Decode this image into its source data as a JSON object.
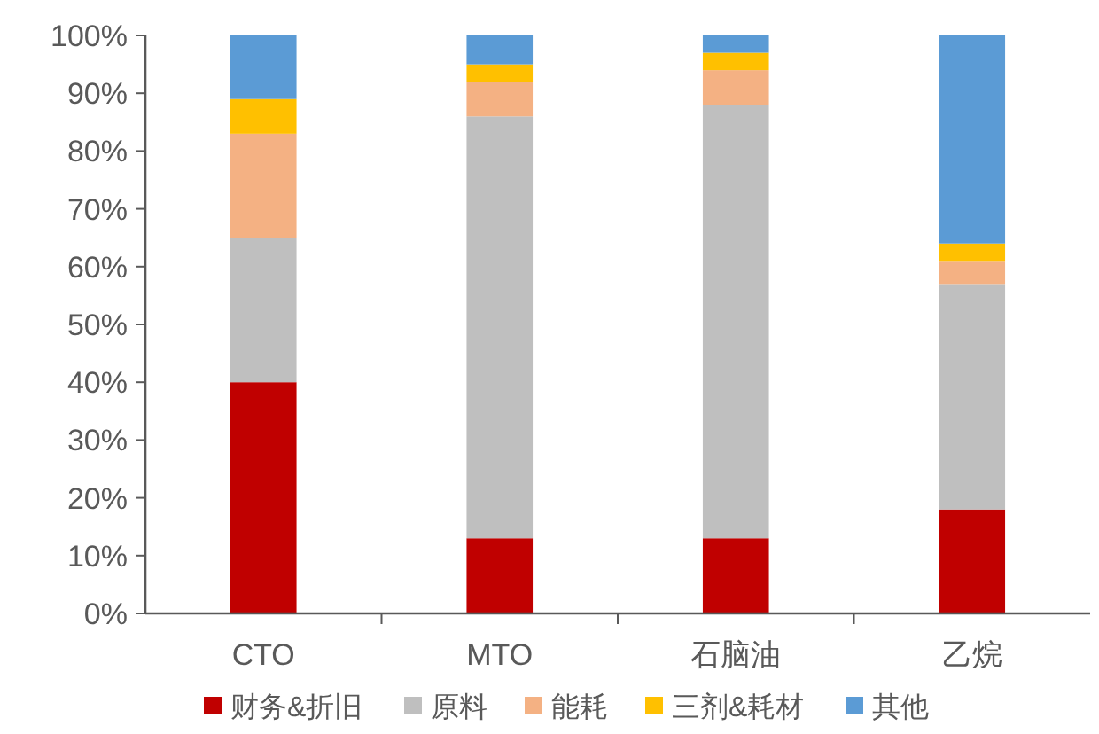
{
  "chart_data": {
    "type": "bar",
    "stacked": true,
    "categories": [
      "CTO",
      "MTO",
      "石脑油",
      "乙烷"
    ],
    "series": [
      {
        "name": "财务&折旧",
        "color": "#c00000",
        "values": [
          40,
          13,
          13,
          18
        ]
      },
      {
        "name": "原料",
        "color": "#bfbfbf",
        "values": [
          25,
          73,
          75,
          39
        ]
      },
      {
        "name": "能耗",
        "color": "#f4b183",
        "values": [
          18,
          6,
          6,
          4
        ]
      },
      {
        "name": "三剂&耗材",
        "color": "#ffc000",
        "values": [
          6,
          3,
          3,
          3
        ]
      },
      {
        "name": "其他",
        "color": "#5b9bd5",
        "values": [
          11,
          5,
          3,
          36
        ]
      }
    ],
    "ylim": [
      0,
      100
    ],
    "yticks": [
      {
        "value": 0,
        "label": "0%"
      },
      {
        "value": 10,
        "label": "10%"
      },
      {
        "value": 20,
        "label": "20%"
      },
      {
        "value": 30,
        "label": "30%"
      },
      {
        "value": 40,
        "label": "40%"
      },
      {
        "value": 50,
        "label": "50%"
      },
      {
        "value": 60,
        "label": "60%"
      },
      {
        "value": 70,
        "label": "70%"
      },
      {
        "value": 80,
        "label": "80%"
      },
      {
        "value": 90,
        "label": "90%"
      },
      {
        "value": 100,
        "label": "100%"
      }
    ],
    "grid": false,
    "legend": "bottom"
  }
}
